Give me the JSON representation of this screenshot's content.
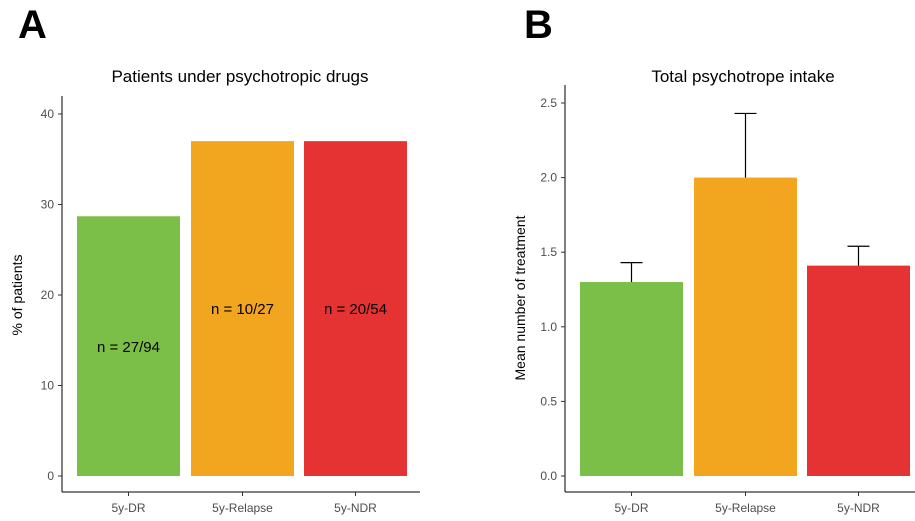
{
  "chart_data": [
    {
      "panel": "A",
      "type": "bar",
      "title": "Patients under psychotropic drugs",
      "xlabel": "",
      "ylabel": "% of patients",
      "ylim": [
        0,
        40
      ],
      "yticks": [
        "0",
        "10",
        "20",
        "30",
        "40"
      ],
      "categories": [
        "5y-DR",
        "5y-Relapse",
        "5y-NDR"
      ],
      "values": [
        28.7,
        37.0,
        37.0
      ],
      "colors": [
        "#7cbf48",
        "#f2a51f",
        "#e53232"
      ],
      "annotations": [
        "n = 27/94",
        "n = 10/27",
        "n = 20/54"
      ],
      "grid": false
    },
    {
      "panel": "B",
      "type": "bar",
      "title": "Total psychotrope intake",
      "xlabel": "",
      "ylabel": "Mean number of treatment",
      "ylim": [
        0,
        2.5
      ],
      "yticks": [
        "0.0",
        "0.5",
        "1.0",
        "1.5",
        "2.0",
        "2.5"
      ],
      "categories": [
        "5y-DR",
        "5y-Relapse",
        "5y-NDR"
      ],
      "values": [
        1.3,
        2.0,
        1.41
      ],
      "error_upper": [
        1.43,
        2.43,
        1.54
      ],
      "colors": [
        "#7cbf48",
        "#f2a51f",
        "#e53232"
      ],
      "grid": false
    }
  ]
}
